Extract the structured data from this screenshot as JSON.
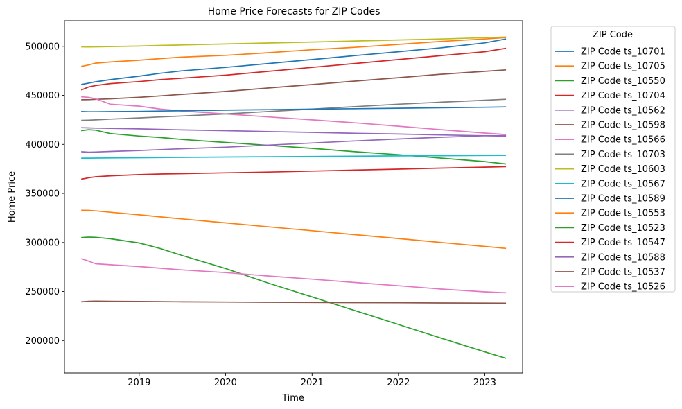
{
  "chart_data": {
    "type": "line",
    "title": "Home Price Forecasts for ZIP Codes",
    "xlabel": "Time",
    "ylabel": "Home Price",
    "legend_title": "ZIP Code",
    "legend_placement": "outside-right",
    "grid": false,
    "xlim": [
      "2018-02-19",
      "2023-06-10"
    ],
    "ylim": [
      167000,
      526000
    ],
    "x_ticks": [
      "2019-01-01",
      "2020-01-01",
      "2021-01-01",
      "2022-01-01",
      "2023-01-01"
    ],
    "x_tick_labels": [
      "2019",
      "2020",
      "2021",
      "2022",
      "2023"
    ],
    "y_ticks": [
      200000,
      250000,
      300000,
      350000,
      400000,
      450000,
      500000
    ],
    "y_tick_labels": [
      "200000",
      "250000",
      "300000",
      "350000",
      "400000",
      "450000",
      "500000"
    ],
    "x": [
      "2018-05-01",
      "2018-06-01",
      "2018-07-01",
      "2018-09-01",
      "2019-01-01",
      "2019-04-01",
      "2019-07-01",
      "2020-01-01",
      "2020-07-01",
      "2021-01-01",
      "2021-07-01",
      "2022-01-01",
      "2022-07-01",
      "2023-01-01",
      "2023-04-01"
    ],
    "series": [
      {
        "name": "ZIP Code ts_10701",
        "color": "#1f77b4",
        "values": [
          461000,
          462500,
          463800,
          466000,
          469500,
          472500,
          475000,
          478500,
          482500,
          486500,
          490500,
          494500,
          498500,
          503500,
          507500
        ]
      },
      {
        "name": "ZIP Code ts_10705",
        "color": "#ff7f0e",
        "values": [
          479500,
          481000,
          482800,
          484000,
          485800,
          487500,
          489000,
          490800,
          493500,
          496500,
          499000,
          502000,
          505000,
          507500,
          509000
        ]
      },
      {
        "name": "ZIP Code ts_10550",
        "color": "#2ca02c",
        "values": [
          414000,
          415000,
          414500,
          411000,
          408500,
          407000,
          405000,
          402000,
          399000,
          396000,
          392500,
          389500,
          386000,
          382500,
          380000
        ]
      },
      {
        "name": "ZIP Code ts_10704",
        "color": "#d62728",
        "values": [
          455500,
          458500,
          460000,
          462000,
          464000,
          466000,
          467500,
          470500,
          474500,
          478500,
          482500,
          486500,
          490500,
          494500,
          498000
        ]
      },
      {
        "name": "ZIP Code ts_10562",
        "color": "#9467bd",
        "values": [
          392500,
          392000,
          392200,
          392800,
          393800,
          394700,
          395600,
          397200,
          399300,
          401400,
          403500,
          405500,
          407300,
          408800,
          409000
        ]
      },
      {
        "name": "ZIP Code ts_10598",
        "color": "#8c564b",
        "values": [
          445500,
          445600,
          445900,
          446500,
          448000,
          449500,
          451000,
          454000,
          457500,
          461000,
          464500,
          468000,
          471500,
          474500,
          476000
        ]
      },
      {
        "name": "ZIP Code ts_10566",
        "color": "#e377c2",
        "values": [
          448500,
          448000,
          446500,
          441000,
          439000,
          436000,
          434000,
          431000,
          428000,
          425000,
          422000,
          418500,
          415000,
          411500,
          410000
        ]
      },
      {
        "name": "ZIP Code ts_10703",
        "color": "#7f7f7f",
        "values": [
          424500,
          424700,
          425000,
          425800,
          427000,
          428000,
          429000,
          431000,
          433500,
          436000,
          438500,
          441000,
          443000,
          445000,
          446000
        ]
      },
      {
        "name": "ZIP Code ts_10603",
        "color": "#bcbd22",
        "values": [
          499500,
          499400,
          499500,
          499800,
          500300,
          500900,
          501400,
          502400,
          503400,
          504400,
          505400,
          506500,
          507500,
          508800,
          509500
        ]
      },
      {
        "name": "ZIP Code ts_10567",
        "color": "#17becf",
        "values": [
          386000,
          386000,
          386100,
          386200,
          386400,
          386600,
          386800,
          387100,
          387400,
          387700,
          388000,
          388300,
          388500,
          388700,
          388800
        ]
      },
      {
        "name": "ZIP Code ts_10589",
        "color": "#1f77b4",
        "values": [
          433500,
          433300,
          433300,
          433400,
          433600,
          434000,
          434300,
          434900,
          435400,
          435900,
          436400,
          436900,
          437400,
          437900,
          438200
        ]
      },
      {
        "name": "ZIP Code ts_10553",
        "color": "#ff7f0e",
        "values": [
          332800,
          332700,
          332200,
          330800,
          328200,
          326100,
          324000,
          320000,
          316000,
          312000,
          308000,
          304000,
          300000,
          296000,
          294000
        ]
      },
      {
        "name": "ZIP Code ts_10523",
        "color": "#2ca02c",
        "values": [
          305000,
          305500,
          305300,
          303800,
          299500,
          293800,
          286800,
          273500,
          258500,
          244500,
          230500,
          216500,
          202500,
          188500,
          182000
        ]
      },
      {
        "name": "ZIP Code ts_10547",
        "color": "#d62728",
        "values": [
          364500,
          366000,
          367000,
          368000,
          369200,
          369800,
          370200,
          371000,
          371800,
          372800,
          373800,
          374800,
          375800,
          376800,
          377300
        ]
      },
      {
        "name": "ZIP Code ts_10588",
        "color": "#9467bd",
        "values": [
          417000,
          416800,
          416600,
          416300,
          415800,
          415300,
          414800,
          414000,
          413100,
          412200,
          411300,
          410500,
          409600,
          408800,
          408400
        ]
      },
      {
        "name": "ZIP Code ts_10537",
        "color": "#8c564b",
        "values": [
          239500,
          240100,
          240200,
          240100,
          239900,
          239700,
          239500,
          239300,
          239100,
          238900,
          238700,
          238600,
          238400,
          238200,
          238100
        ]
      },
      {
        "name": "ZIP Code ts_10526",
        "color": "#e377c2",
        "values": [
          283500,
          281000,
          278300,
          277300,
          275500,
          273800,
          272100,
          269300,
          265900,
          262600,
          259200,
          255900,
          252500,
          249700,
          248700
        ]
      }
    ]
  }
}
